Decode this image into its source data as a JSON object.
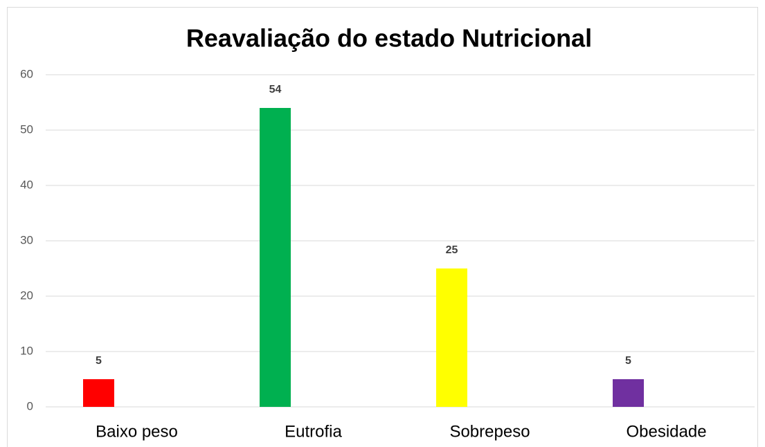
{
  "chart_data": {
    "type": "bar",
    "title": "Reavaliação do estado Nutricional",
    "categories": [
      "Baixo peso",
      "Eutrofia",
      "Sobrepeso",
      "Obesidade"
    ],
    "values": [
      5,
      54,
      25,
      5
    ],
    "colors": [
      "#ff0000",
      "#00b050",
      "#ffff00",
      "#7030a0"
    ],
    "ylim": [
      0,
      60
    ],
    "yticks": [
      0,
      10,
      20,
      30,
      40,
      50,
      60
    ],
    "grid": true
  }
}
